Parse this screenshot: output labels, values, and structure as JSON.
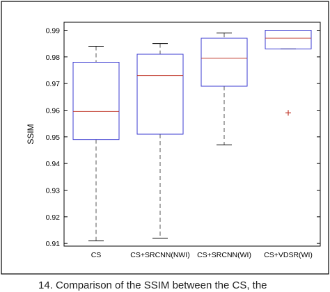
{
  "chart_data": {
    "type": "box",
    "title": "",
    "xlabel": "",
    "ylabel": "SSIM",
    "ylim": [
      0.909,
      0.993
    ],
    "yticks": [
      0.91,
      0.92,
      0.93,
      0.94,
      0.95,
      0.96,
      0.97,
      0.98,
      0.99
    ],
    "ytick_labels": [
      "0.91",
      "0.92",
      "0.93",
      "0.94",
      "0.95",
      "0.96",
      "0.97",
      "0.98",
      "0.99"
    ],
    "categories": [
      "CS",
      "CS+SRCNN(NWI)",
      "CS+SRCNN(WI)",
      "CS+VDSR(WI)"
    ],
    "boxes": [
      {
        "whisker_low": 0.911,
        "q1": 0.949,
        "median": 0.9595,
        "q3": 0.978,
        "whisker_high": 0.984,
        "outliers": []
      },
      {
        "whisker_low": 0.912,
        "q1": 0.951,
        "median": 0.973,
        "q3": 0.981,
        "whisker_high": 0.985,
        "outliers": []
      },
      {
        "whisker_low": 0.947,
        "q1": 0.969,
        "median": 0.9795,
        "q3": 0.987,
        "whisker_high": 0.989,
        "outliers": []
      },
      {
        "whisker_low": 0.983,
        "q1": 0.983,
        "median": 0.987,
        "q3": 0.99,
        "whisker_high": 0.99,
        "outliers": [
          0.959
        ]
      }
    ],
    "box_color": "#3b3bd1",
    "median_color": "#c0392b",
    "whisker_color": "#555555",
    "outlier_color": "#c0392b",
    "grid": false
  },
  "caption": "14. Comparison of the SSIM between the CS, the"
}
